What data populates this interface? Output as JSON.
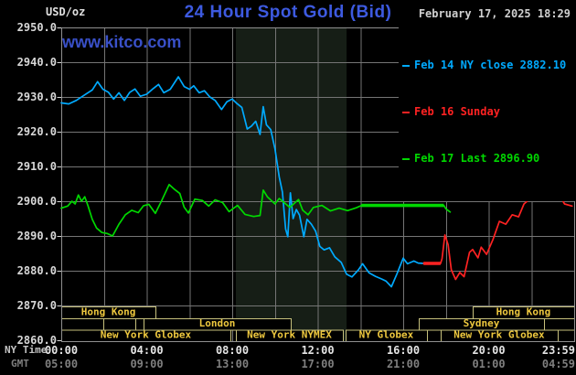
{
  "header": {
    "unit": "USD/oz",
    "title": "24 Hour Spot Gold (Bid)",
    "datetime": "February 17, 2025 18:29",
    "watermark": "www.kitco.com"
  },
  "legend": {
    "items": [
      {
        "label": "Feb 14 NY close 2882.10",
        "color": "#00aaff"
      },
      {
        "label": "Feb 16 Sunday",
        "color": "#ff2222"
      },
      {
        "label": "Feb 17 Last 2896.90",
        "color": "#00d800"
      }
    ]
  },
  "axes": {
    "x_row1_label": "NY Time",
    "x_row2_label": "GMT"
  },
  "chart_data": {
    "type": "line",
    "title": "24 Hour Spot Gold (Bid)",
    "ylabel": "USD/oz",
    "ylim": [
      2860,
      2950
    ],
    "xlim_hours": [
      0,
      24
    ],
    "grid": true,
    "legend_position": "top-right",
    "y_ticks": [
      2950,
      2940,
      2930,
      2920,
      2910,
      2900,
      2890,
      2880,
      2870,
      2860
    ],
    "x_ticks": [
      {
        "h": 0,
        "ny": "00:00",
        "gmt": "05:00"
      },
      {
        "h": 4,
        "ny": "04:00",
        "gmt": "09:00"
      },
      {
        "h": 8,
        "ny": "08:00",
        "gmt": "13:00"
      },
      {
        "h": 12,
        "ny": "12:00",
        "gmt": "17:00"
      },
      {
        "h": 16,
        "ny": "16:00",
        "gmt": "21:00"
      },
      {
        "h": 20,
        "ny": "20:00",
        "gmt": "01:00"
      },
      {
        "h": 23.98,
        "ny": "23:59",
        "gmt": "04:59"
      }
    ],
    "shaded_region_hours": [
      8.17,
      13.35
    ],
    "colors": {
      "background": "#000000",
      "gridline": "#757575",
      "border": "#8f8f8f",
      "shade": "#161e16",
      "session_box": "#c6c07c",
      "session_text": "#eec83e",
      "feb14": "#00aaff",
      "feb16": "#ff2222",
      "feb17": "#00d800"
    },
    "series": [
      {
        "name": "Feb 14 NY close",
        "color": "#00aaff",
        "width": 1.7,
        "points": [
          [
            0,
            2928.3
          ],
          [
            0.35,
            2928
          ],
          [
            0.7,
            2929
          ],
          [
            1.1,
            2930.6
          ],
          [
            1.45,
            2932
          ],
          [
            1.7,
            2934.4
          ],
          [
            1.95,
            2932.2
          ],
          [
            2.2,
            2931.4
          ],
          [
            2.45,
            2929.4
          ],
          [
            2.7,
            2931.2
          ],
          [
            2.95,
            2929
          ],
          [
            3.2,
            2931.3
          ],
          [
            3.45,
            2932.3
          ],
          [
            3.7,
            2930.2
          ],
          [
            4,
            2930.8
          ],
          [
            4.3,
            2932.4
          ],
          [
            4.55,
            2933.6
          ],
          [
            4.8,
            2931.2
          ],
          [
            5.1,
            2932.2
          ],
          [
            5.48,
            2935.8
          ],
          [
            5.75,
            2933
          ],
          [
            6,
            2932.2
          ],
          [
            6.2,
            2933.2
          ],
          [
            6.45,
            2931.2
          ],
          [
            6.7,
            2931.8
          ],
          [
            6.95,
            2930
          ],
          [
            7.2,
            2929
          ],
          [
            7.5,
            2926.4
          ],
          [
            7.75,
            2928.6
          ],
          [
            8,
            2929.4
          ],
          [
            8.2,
            2928.2
          ],
          [
            8.45,
            2927
          ],
          [
            8.7,
            2920.8
          ],
          [
            8.9,
            2921.6
          ],
          [
            9.1,
            2923
          ],
          [
            9.3,
            2919.2
          ],
          [
            9.45,
            2927.2
          ],
          [
            9.6,
            2922
          ],
          [
            9.8,
            2920.6
          ],
          [
            10,
            2915
          ],
          [
            10.2,
            2907
          ],
          [
            10.35,
            2902.6
          ],
          [
            10.5,
            2892
          ],
          [
            10.6,
            2889.8
          ],
          [
            10.72,
            2902.4
          ],
          [
            10.85,
            2895
          ],
          [
            11,
            2897.6
          ],
          [
            11.15,
            2896
          ],
          [
            11.35,
            2889.8
          ],
          [
            11.5,
            2894.8
          ],
          [
            11.7,
            2893.4
          ],
          [
            11.9,
            2891.4
          ],
          [
            12.1,
            2887
          ],
          [
            12.3,
            2886
          ],
          [
            12.55,
            2886.6
          ],
          [
            12.8,
            2884
          ],
          [
            13.1,
            2882.4
          ],
          [
            13.35,
            2879
          ],
          [
            13.6,
            2878.2
          ],
          [
            13.9,
            2880.2
          ],
          [
            14.1,
            2882
          ],
          [
            14.4,
            2879.4
          ],
          [
            14.7,
            2878.4
          ],
          [
            15,
            2877.6
          ],
          [
            15.2,
            2877
          ],
          [
            15.45,
            2875.4
          ],
          [
            15.7,
            2879
          ],
          [
            16,
            2883.6
          ],
          [
            16.2,
            2882
          ],
          [
            16.5,
            2882.8
          ],
          [
            16.7,
            2882.2
          ],
          [
            16.95,
            2882.1
          ]
        ]
      },
      {
        "name": "Feb 16 Sunday",
        "color": "#ff2222",
        "width": 1.7,
        "thick_segment": [
          16.95,
          17.75
        ],
        "thick_width": 3.6,
        "points": [
          [
            16.95,
            2882.1
          ],
          [
            17.75,
            2882.1
          ],
          [
            17.82,
            2883.5
          ],
          [
            17.95,
            2890.3
          ],
          [
            18.1,
            2887.5
          ],
          [
            18.25,
            2880.3
          ],
          [
            18.45,
            2877.5
          ],
          [
            18.65,
            2879.5
          ],
          [
            18.85,
            2878.3
          ],
          [
            19.1,
            2885.3
          ],
          [
            19.25,
            2886.1
          ],
          [
            19.5,
            2883.7
          ],
          [
            19.65,
            2886.8
          ],
          [
            19.9,
            2884.7
          ],
          [
            20.2,
            2889
          ],
          [
            20.5,
            2894.2
          ],
          [
            20.8,
            2893.4
          ],
          [
            21.1,
            2896.1
          ],
          [
            21.4,
            2895.5
          ],
          [
            21.65,
            2899.2
          ],
          [
            21.95,
            2900.8
          ],
          [
            22.45,
            2903.4
          ],
          [
            22.7,
            2902.6
          ],
          [
            23,
            2903.2
          ],
          [
            23.3,
            2901.8
          ],
          [
            23.55,
            2899.2
          ],
          [
            23.9,
            2898.6
          ]
        ]
      },
      {
        "name": "Feb 17 Last",
        "color": "#00d800",
        "width": 1.7,
        "thick_segment": [
          14.05,
          17.9
        ],
        "thick_width": 3.6,
        "points": [
          [
            0,
            2898
          ],
          [
            0.3,
            2898.6
          ],
          [
            0.5,
            2900
          ],
          [
            0.65,
            2899.2
          ],
          [
            0.8,
            2901.8
          ],
          [
            0.95,
            2900
          ],
          [
            1.1,
            2901.3
          ],
          [
            1.25,
            2898.7
          ],
          [
            1.45,
            2894.8
          ],
          [
            1.65,
            2892.3
          ],
          [
            1.9,
            2891
          ],
          [
            2.15,
            2890.7
          ],
          [
            2.4,
            2890
          ],
          [
            2.7,
            2893.4
          ],
          [
            3,
            2896.1
          ],
          [
            3.3,
            2897.4
          ],
          [
            3.6,
            2896.7
          ],
          [
            3.85,
            2898.7
          ],
          [
            4.1,
            2899.1
          ],
          [
            4.4,
            2896.5
          ],
          [
            4.7,
            2900.2
          ],
          [
            5.05,
            2904.8
          ],
          [
            5.3,
            2903.4
          ],
          [
            5.55,
            2902.2
          ],
          [
            5.75,
            2898.3
          ],
          [
            5.95,
            2896.6
          ],
          [
            6.25,
            2900.6
          ],
          [
            6.6,
            2900.2
          ],
          [
            6.9,
            2898.6
          ],
          [
            7.2,
            2900.4
          ],
          [
            7.55,
            2899.6
          ],
          [
            7.85,
            2897
          ],
          [
            8.25,
            2898.8
          ],
          [
            8.6,
            2896.2
          ],
          [
            9,
            2895.6
          ],
          [
            9.3,
            2895.9
          ],
          [
            9.45,
            2903.2
          ],
          [
            9.65,
            2901.2
          ],
          [
            10,
            2899.2
          ],
          [
            10.2,
            2900.8
          ],
          [
            10.7,
            2898.2
          ],
          [
            11.1,
            2900.5
          ],
          [
            11.3,
            2897.4
          ],
          [
            11.55,
            2896.1
          ],
          [
            11.8,
            2898.2
          ],
          [
            12.2,
            2898.8
          ],
          [
            12.6,
            2897.2
          ],
          [
            13,
            2898
          ],
          [
            13.4,
            2897.3
          ],
          [
            13.8,
            2898.1
          ],
          [
            14.05,
            2898.8
          ],
          [
            17.9,
            2898.8
          ],
          [
            18,
            2897.8
          ],
          [
            18.2,
            2896.9
          ]
        ]
      }
    ],
    "sessions": [
      {
        "row": 0,
        "start_h": 0,
        "end_h": 4.41,
        "label": "Hong Kong"
      },
      {
        "row": 0,
        "start_h": 19.25,
        "end_h": 24,
        "label": "Hong Kong"
      },
      {
        "row": 1,
        "start_h": 0,
        "end_h": 1.97,
        "label": ""
      },
      {
        "row": 1,
        "start_h": 1.97,
        "end_h": 3.47,
        "label": ""
      },
      {
        "row": 1,
        "start_h": 3.85,
        "end_h": 10.74,
        "label": "London"
      },
      {
        "row": 1,
        "start_h": 16.73,
        "end_h": 22.59,
        "label": "Sydney"
      },
      {
        "row": 1,
        "start_h": 22.59,
        "end_h": 24,
        "label": ""
      },
      {
        "row": 2,
        "start_h": 0,
        "end_h": 7.91,
        "label": "New York Globex"
      },
      {
        "row": 2,
        "start_h": 8.17,
        "end_h": 13.18,
        "label": "New York NYMEX"
      },
      {
        "row": 2,
        "start_h": 13.3,
        "end_h": 17.11,
        "label": "NY Globex"
      },
      {
        "row": 2,
        "start_h": 17.75,
        "end_h": 23.23,
        "label": "New York Globex"
      },
      {
        "row": 2,
        "start_h": 23.23,
        "end_h": 24,
        "label": ""
      }
    ]
  }
}
